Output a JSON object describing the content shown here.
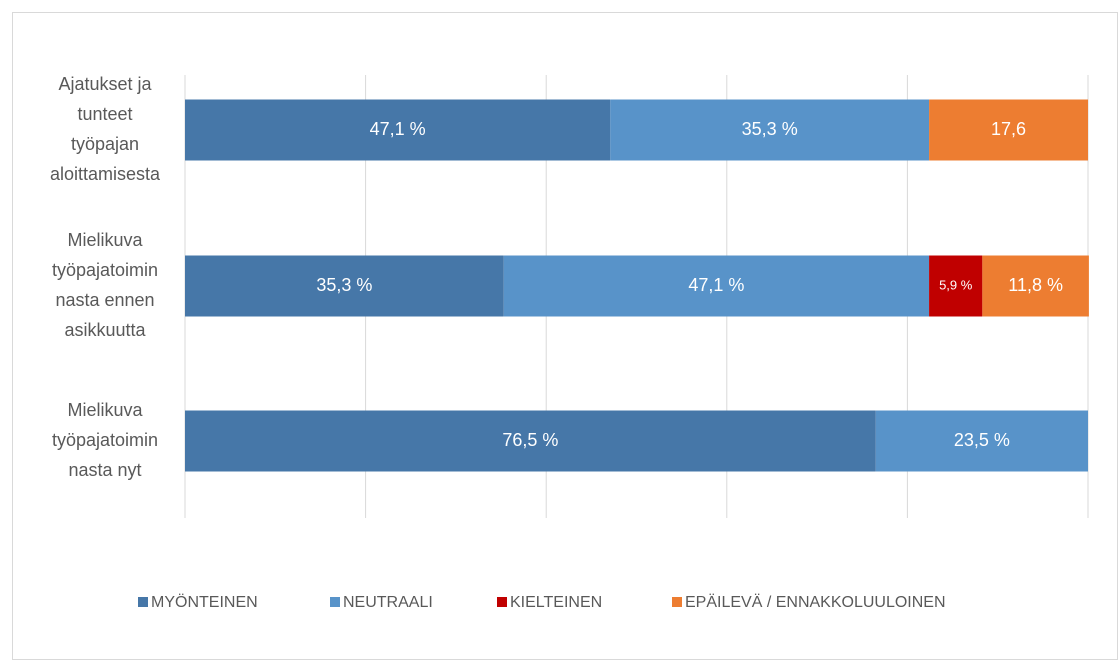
{
  "chart_data": {
    "type": "stacked_bar_horizontal",
    "categories": [
      [
        "Ajatukset ja",
        "tunteet",
        "työpajan",
        "aloittamisesta"
      ],
      [
        "Mielikuva",
        "työpajatoimin",
        "nasta ennen",
        "asikkuutta"
      ],
      [
        "Mielikuva",
        "työpajatoimin",
        "nasta nyt"
      ]
    ],
    "series": [
      {
        "name": "MYÖNTEINEN",
        "color": "#4677a8",
        "values": [
          47.1,
          35.3,
          76.5
        ],
        "value_labels": [
          "47,1 %",
          "35,3 %",
          "76,5 %"
        ]
      },
      {
        "name": "NEUTRAALI",
        "color": "#5893c9",
        "values": [
          35.3,
          47.1,
          23.5
        ],
        "value_labels": [
          "35,3 %",
          "47,1 %",
          "23,5 %"
        ]
      },
      {
        "name": "KIELTEINEN",
        "color": "#c00000",
        "values": [
          null,
          5.9,
          null
        ],
        "value_labels": [
          null,
          "5,9 %",
          null
        ]
      },
      {
        "name": "EPÄILEVÄ / ENNAKKOLUULOINEN",
        "color": "#ed7d31",
        "values": [
          17.6,
          11.8,
          null
        ],
        "value_labels": [
          "17,6",
          "11,8 %",
          null
        ]
      }
    ],
    "xlim": [
      0,
      100
    ],
    "xticks": [
      0,
      20,
      40,
      60,
      80,
      100
    ],
    "grid": true,
    "legend": "bottom"
  }
}
